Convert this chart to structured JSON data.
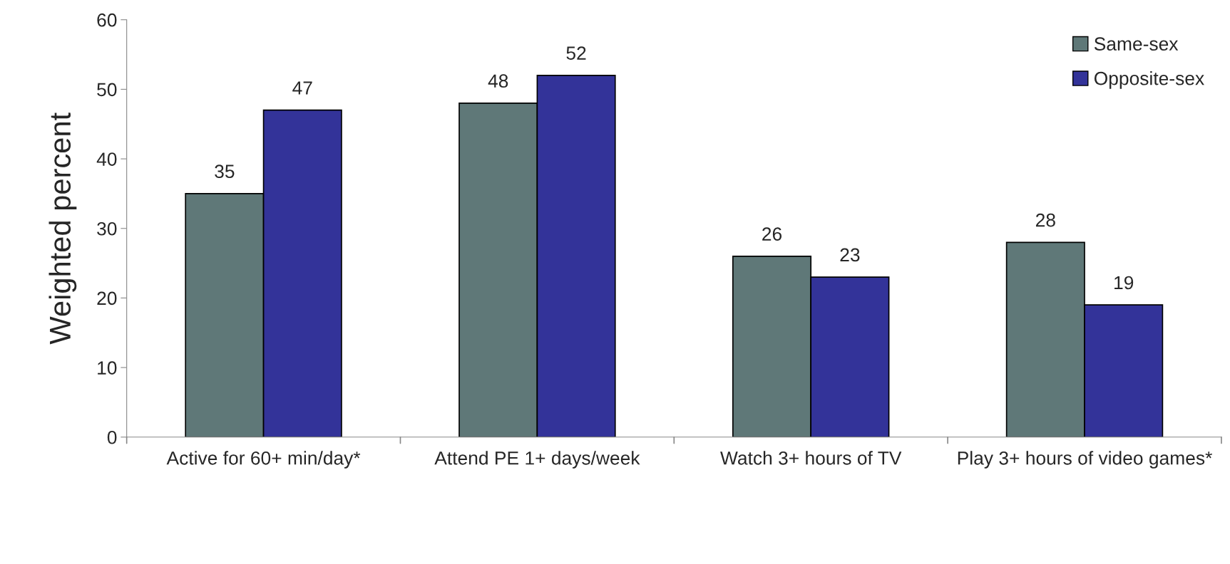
{
  "chart_data": {
    "type": "bar",
    "ylabel": "Weighted percent",
    "categories": [
      "Active for 60+ min/day*",
      "Attend PE 1+ days/week",
      "Watch 3+ hours of TV",
      "Play 3+ hours of video games*"
    ],
    "series": [
      {
        "name": "Same-sex",
        "color": "#5f7878",
        "values": [
          35,
          48,
          26,
          28
        ]
      },
      {
        "name": "Opposite-sex",
        "color": "#333399",
        "values": [
          47,
          52,
          23,
          19
        ]
      }
    ],
    "ylim": [
      0,
      60
    ],
    "yticks": [
      0,
      10,
      20,
      30,
      40,
      50,
      60
    ],
    "grid": false,
    "legend": "top right",
    "data_labels": true
  }
}
